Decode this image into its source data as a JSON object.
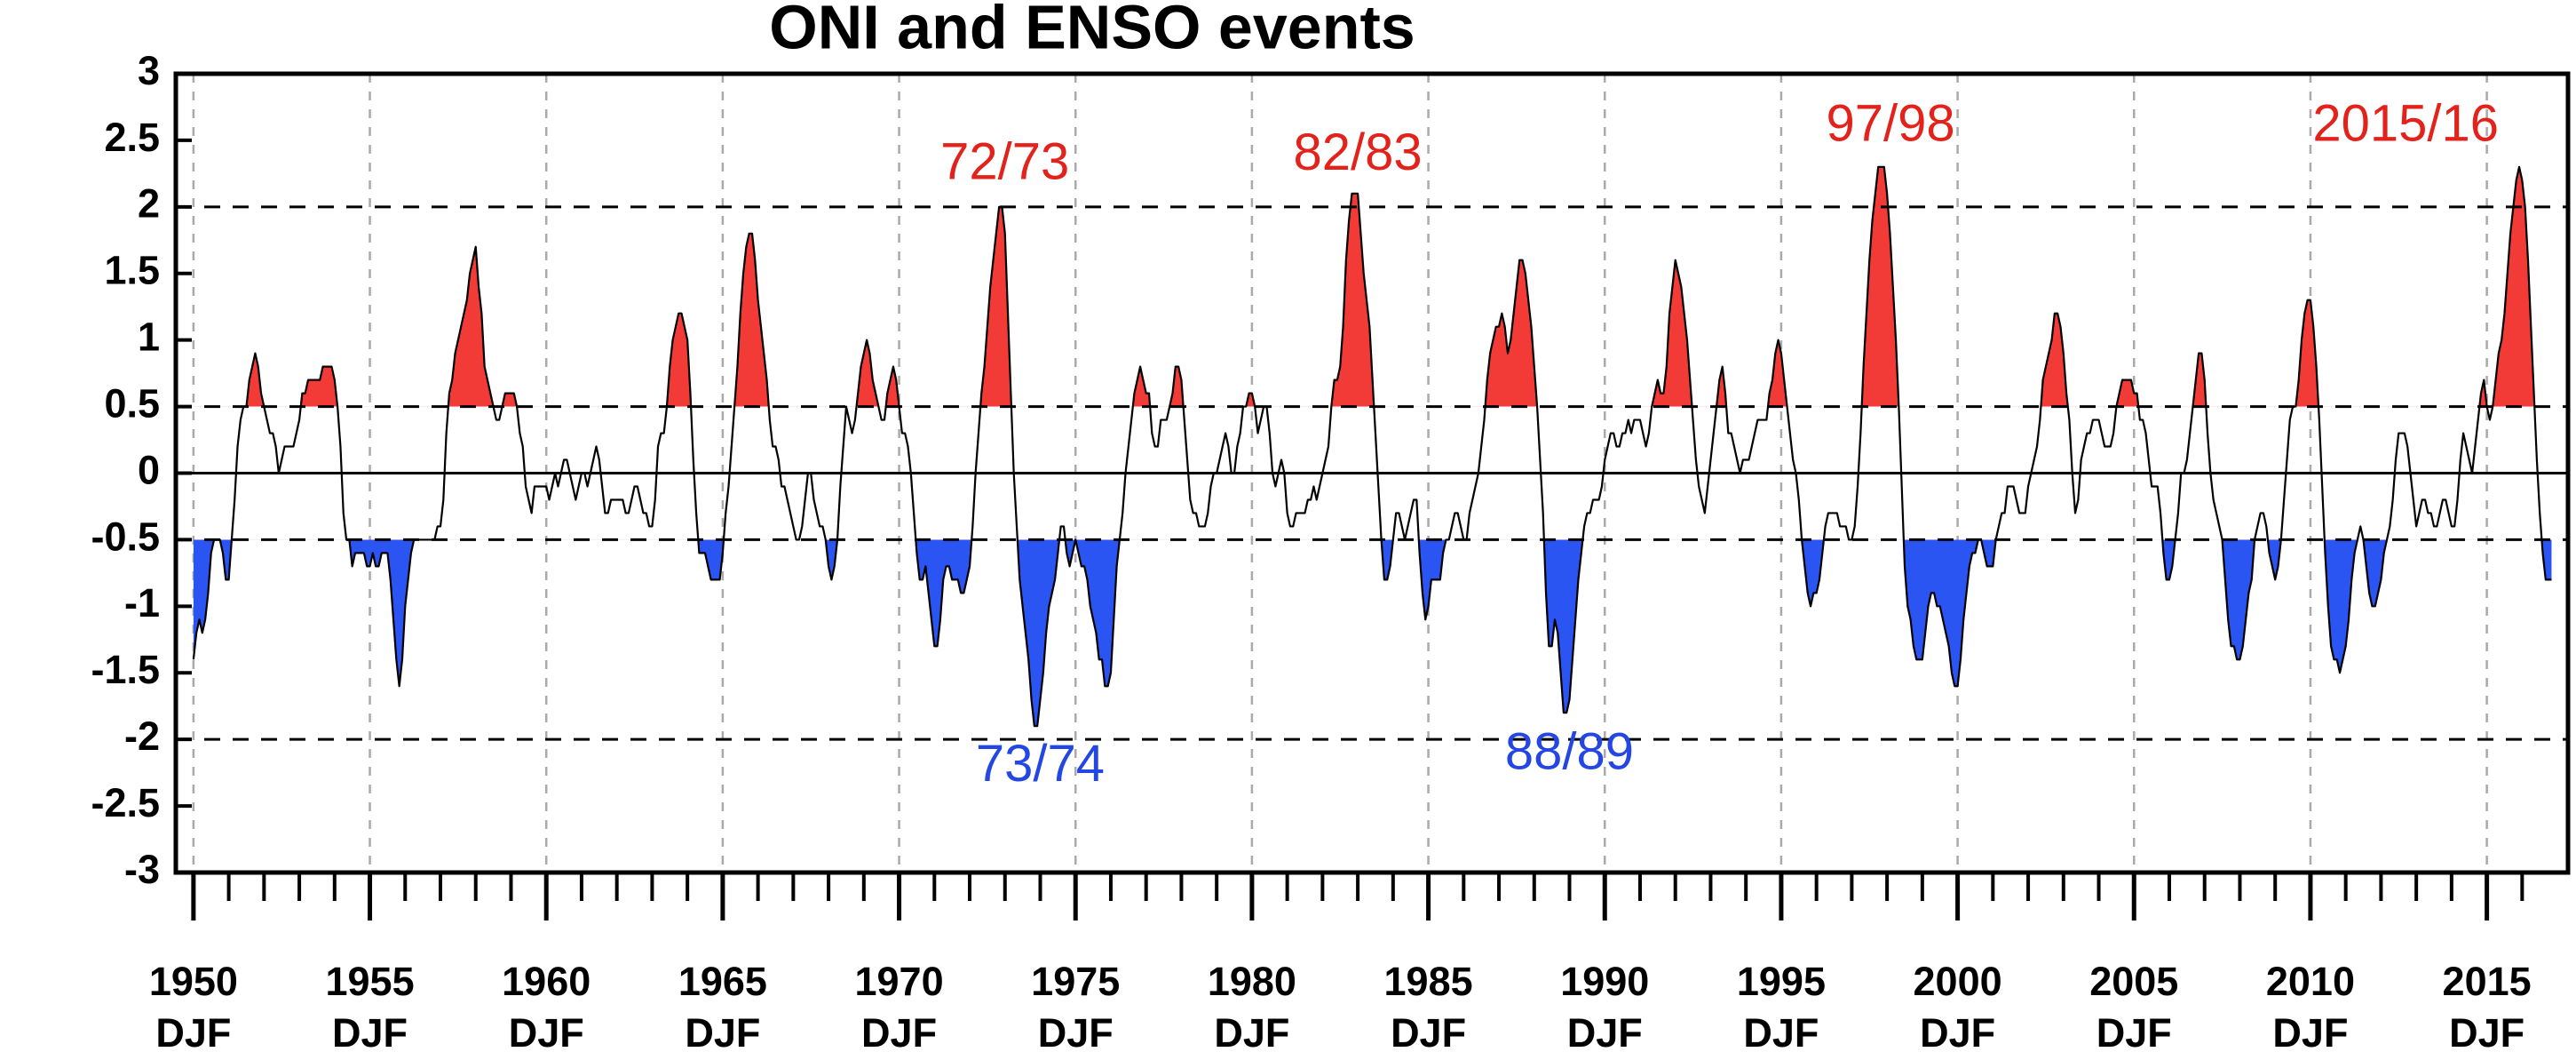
{
  "chart_data": {
    "type": "line",
    "title": "ONI and ENSO events",
    "xlim": [
      1949.5,
      2017.3
    ],
    "ylim": [
      -3,
      3
    ],
    "xticks": [
      1950,
      1955,
      1960,
      1965,
      1970,
      1975,
      1980,
      1985,
      1990,
      1995,
      2000,
      2005,
      2010,
      2015
    ],
    "xtick_season": "DJF",
    "xminor_ticks": [
      1951,
      1952,
      1953,
      1954,
      1956,
      1957,
      1958,
      1959,
      1961,
      1962,
      1963,
      1964,
      1966,
      1967,
      1968,
      1969,
      1971,
      1972,
      1973,
      1974,
      1976,
      1977,
      1978,
      1979,
      1981,
      1982,
      1983,
      1984,
      1986,
      1987,
      1988,
      1989,
      1991,
      1992,
      1993,
      1994,
      1996,
      1997,
      1998,
      1999,
      2001,
      2002,
      2003,
      2004,
      2006,
      2007,
      2008,
      2009,
      2011,
      2012,
      2013,
      2014,
      2016
    ],
    "yticks": [
      3,
      2.5,
      2,
      1.5,
      1,
      0.5,
      0,
      -0.5,
      -1,
      -1.5,
      -2,
      -2.5,
      -3
    ],
    "grid": true,
    "line_color": "#000000",
    "reference_lines": [
      {
        "value": 2,
        "dashed": true
      },
      {
        "value": 0.5,
        "dashed": true
      },
      {
        "value": 0,
        "dashed": false
      },
      {
        "value": -0.5,
        "dashed": true
      },
      {
        "value": -2,
        "dashed": true
      }
    ],
    "el_nino": {
      "threshold": 0.5,
      "color": "#f23b36"
    },
    "la_nina": {
      "threshold": -0.5,
      "color": "#2b55f2"
    },
    "annotations": [
      {
        "text": "72/73",
        "x": 1973.0,
        "y": 2.31,
        "color": "#e3221c"
      },
      {
        "text": "82/83",
        "x": 1983.0,
        "y": 2.38,
        "color": "#e3221c"
      },
      {
        "text": "97/98",
        "x": 1998.1,
        "y": 2.6,
        "color": "#e3221c"
      },
      {
        "text": "2015/16",
        "x": 2012.7,
        "y": 2.6,
        "color": "#e3221c"
      },
      {
        "text": "73/74",
        "x": 1974.0,
        "y": -2.21,
        "color": "#2447e3"
      },
      {
        "text": "88/89",
        "x": 1989.0,
        "y": -2.12,
        "color": "#2447e3"
      }
    ],
    "years": [
      1950,
      1951,
      1952,
      1953,
      1954,
      1955,
      1956,
      1957,
      1958,
      1959,
      1960,
      1961,
      1962,
      1963,
      1964,
      1965,
      1966,
      1967,
      1968,
      1969,
      1970,
      1971,
      1972,
      1973,
      1974,
      1975,
      1976,
      1977,
      1978,
      1979,
      1980,
      1981,
      1982,
      1983,
      1984,
      1985,
      1986,
      1987,
      1988,
      1989,
      1990,
      1991,
      1992,
      1993,
      1994,
      1995,
      1996,
      1997,
      1998,
      1999,
      2000,
      2001,
      2002,
      2003,
      2004,
      2005,
      2006,
      2007,
      2008,
      2009,
      2010,
      2011,
      2012,
      2013,
      2014,
      2015,
      2016
    ],
    "values": [
      [
        -1.4,
        -1.2,
        -1.1,
        -1.2,
        -1.1,
        -0.9,
        -0.6,
        -0.5,
        -0.5,
        -0.5,
        -0.6,
        -0.8
      ],
      [
        -0.8,
        -0.5,
        -0.2,
        0.2,
        0.4,
        0.5,
        0.5,
        0.7,
        0.8,
        0.9,
        0.8,
        0.6
      ],
      [
        0.5,
        0.4,
        0.3,
        0.3,
        0.2,
        0.0,
        0.1,
        0.2,
        0.2,
        0.2,
        0.2,
        0.3
      ],
      [
        0.4,
        0.6,
        0.6,
        0.7,
        0.7,
        0.7,
        0.7,
        0.7,
        0.8,
        0.8,
        0.8,
        0.8
      ],
      [
        0.7,
        0.5,
        0.2,
        -0.3,
        -0.5,
        -0.5,
        -0.7,
        -0.6,
        -0.6,
        -0.6,
        -0.6,
        -0.7
      ],
      [
        -0.7,
        -0.6,
        -0.7,
        -0.7,
        -0.6,
        -0.6,
        -0.6,
        -0.8,
        -1.1,
        -1.4,
        -1.6,
        -1.4
      ],
      [
        -1.0,
        -0.8,
        -0.6,
        -0.5,
        -0.5,
        -0.5,
        -0.5,
        -0.5,
        -0.5,
        -0.5,
        -0.5,
        -0.4
      ],
      [
        -0.4,
        -0.2,
        0.3,
        0.6,
        0.7,
        0.9,
        1.0,
        1.1,
        1.2,
        1.3,
        1.5,
        1.6
      ],
      [
        1.7,
        1.4,
        1.2,
        0.8,
        0.7,
        0.6,
        0.5,
        0.4,
        0.4,
        0.5,
        0.6,
        0.6
      ],
      [
        0.6,
        0.6,
        0.5,
        0.3,
        0.2,
        -0.1,
        -0.2,
        -0.3,
        -0.1,
        -0.1,
        -0.1,
        -0.1
      ],
      [
        -0.1,
        -0.2,
        -0.1,
        0.0,
        -0.1,
        0.0,
        0.1,
        0.1,
        0.0,
        -0.1,
        -0.2,
        -0.1
      ],
      [
        0.0,
        0.0,
        -0.1,
        0.0,
        0.1,
        0.2,
        0.1,
        -0.1,
        -0.3,
        -0.3,
        -0.2,
        -0.2
      ],
      [
        -0.2,
        -0.2,
        -0.2,
        -0.3,
        -0.3,
        -0.2,
        -0.1,
        -0.1,
        -0.2,
        -0.3,
        -0.3,
        -0.4
      ],
      [
        -0.4,
        -0.2,
        0.2,
        0.3,
        0.3,
        0.5,
        0.8,
        1.0,
        1.1,
        1.2,
        1.2,
        1.1
      ],
      [
        1.0,
        0.6,
        0.1,
        -0.3,
        -0.6,
        -0.6,
        -0.6,
        -0.7,
        -0.8,
        -0.8,
        -0.8,
        -0.8
      ],
      [
        -0.6,
        -0.3,
        -0.1,
        0.2,
        0.5,
        0.8,
        1.2,
        1.5,
        1.7,
        1.8,
        1.8,
        1.6
      ],
      [
        1.3,
        1.1,
        0.9,
        0.7,
        0.4,
        0.2,
        0.2,
        0.1,
        -0.1,
        -0.1,
        -0.2,
        -0.3
      ],
      [
        -0.4,
        -0.5,
        -0.5,
        -0.4,
        -0.2,
        0.0,
        0.0,
        -0.2,
        -0.3,
        -0.4,
        -0.4,
        -0.5
      ],
      [
        -0.7,
        -0.8,
        -0.7,
        -0.5,
        -0.1,
        0.2,
        0.5,
        0.4,
        0.3,
        0.4,
        0.6,
        0.8
      ],
      [
        0.9,
        1.0,
        0.9,
        0.7,
        0.6,
        0.5,
        0.4,
        0.4,
        0.6,
        0.7,
        0.8,
        0.7
      ],
      [
        0.5,
        0.3,
        0.3,
        0.2,
        0.0,
        -0.3,
        -0.6,
        -0.8,
        -0.8,
        -0.7,
        -0.9,
        -1.1
      ],
      [
        -1.3,
        -1.3,
        -1.1,
        -0.8,
        -0.7,
        -0.7,
        -0.8,
        -0.8,
        -0.8,
        -0.9,
        -0.9,
        -0.8
      ],
      [
        -0.7,
        -0.4,
        0.0,
        0.3,
        0.6,
        0.8,
        1.1,
        1.4,
        1.6,
        1.8,
        2.0,
        2.0
      ],
      [
        1.8,
        1.2,
        0.6,
        0.0,
        -0.4,
        -0.8,
        -1.0,
        -1.2,
        -1.4,
        -1.7,
        -1.9,
        -1.9
      ],
      [
        -1.7,
        -1.5,
        -1.2,
        -1.0,
        -0.9,
        -0.8,
        -0.6,
        -0.4,
        -0.4,
        -0.6,
        -0.7,
        -0.6
      ],
      [
        -0.5,
        -0.6,
        -0.7,
        -0.7,
        -0.8,
        -1.0,
        -1.1,
        -1.2,
        -1.4,
        -1.4,
        -1.6,
        -1.6
      ],
      [
        -1.5,
        -1.1,
        -0.7,
        -0.5,
        -0.3,
        0.0,
        0.2,
        0.4,
        0.6,
        0.7,
        0.8,
        0.7
      ],
      [
        0.6,
        0.6,
        0.3,
        0.2,
        0.2,
        0.4,
        0.4,
        0.4,
        0.5,
        0.6,
        0.8,
        0.8
      ],
      [
        0.7,
        0.4,
        0.1,
        -0.2,
        -0.3,
        -0.3,
        -0.4,
        -0.4,
        -0.4,
        -0.3,
        -0.1,
        0.0
      ],
      [
        0.0,
        0.1,
        0.2,
        0.3,
        0.2,
        0.0,
        0.0,
        0.2,
        0.3,
        0.5,
        0.5,
        0.6
      ],
      [
        0.6,
        0.5,
        0.3,
        0.4,
        0.5,
        0.5,
        0.3,
        0.0,
        -0.1,
        0.0,
        0.1,
        0.0
      ],
      [
        -0.3,
        -0.4,
        -0.4,
        -0.3,
        -0.3,
        -0.3,
        -0.3,
        -0.2,
        -0.2,
        -0.1,
        -0.2,
        -0.1
      ],
      [
        0.0,
        0.1,
        0.2,
        0.5,
        0.7,
        0.7,
        0.8,
        1.1,
        1.6,
        1.9,
        2.1,
        2.1
      ],
      [
        2.1,
        1.8,
        1.5,
        1.3,
        1.1,
        0.7,
        0.3,
        -0.1,
        -0.5,
        -0.8,
        -0.8,
        -0.7
      ],
      [
        -0.5,
        -0.3,
        -0.3,
        -0.4,
        -0.5,
        -0.4,
        -0.3,
        -0.2,
        -0.2,
        -0.6,
        -0.9,
        -1.1
      ],
      [
        -1.0,
        -0.8,
        -0.8,
        -0.8,
        -0.8,
        -0.6,
        -0.5,
        -0.5,
        -0.4,
        -0.3,
        -0.3,
        -0.4
      ],
      [
        -0.5,
        -0.5,
        -0.3,
        -0.2,
        -0.1,
        0.0,
        0.2,
        0.4,
        0.7,
        0.9,
        1.0,
        1.1
      ],
      [
        1.1,
        1.2,
        1.1,
        0.9,
        1.0,
        1.2,
        1.4,
        1.6,
        1.6,
        1.5,
        1.3,
        1.1
      ],
      [
        0.8,
        0.5,
        0.1,
        -0.3,
        -0.9,
        -1.3,
        -1.3,
        -1.1,
        -1.2,
        -1.5,
        -1.8,
        -1.8
      ],
      [
        -1.7,
        -1.4,
        -1.1,
        -0.8,
        -0.6,
        -0.4,
        -0.3,
        -0.3,
        -0.2,
        -0.2,
        -0.2,
        -0.1
      ],
      [
        0.1,
        0.2,
        0.3,
        0.3,
        0.2,
        0.2,
        0.3,
        0.3,
        0.4,
        0.3,
        0.4,
        0.4
      ],
      [
        0.4,
        0.3,
        0.2,
        0.3,
        0.5,
        0.6,
        0.7,
        0.6,
        0.6,
        0.8,
        1.2,
        1.4
      ],
      [
        1.6,
        1.5,
        1.4,
        1.2,
        1.0,
        0.7,
        0.4,
        0.1,
        -0.1,
        -0.2,
        -0.3,
        -0.1
      ],
      [
        0.1,
        0.3,
        0.5,
        0.7,
        0.8,
        0.6,
        0.3,
        0.3,
        0.2,
        0.1,
        0.0,
        0.1
      ],
      [
        0.1,
        0.1,
        0.2,
        0.3,
        0.4,
        0.4,
        0.4,
        0.4,
        0.6,
        0.7,
        0.9,
        1.0
      ],
      [
        0.9,
        0.7,
        0.5,
        0.3,
        0.1,
        0.0,
        -0.2,
        -0.5,
        -0.7,
        -0.9,
        -1.0,
        -0.9
      ],
      [
        -0.9,
        -0.8,
        -0.6,
        -0.4,
        -0.3,
        -0.3,
        -0.3,
        -0.3,
        -0.4,
        -0.4,
        -0.4,
        -0.5
      ],
      [
        -0.5,
        -0.4,
        -0.1,
        0.3,
        0.8,
        1.2,
        1.6,
        1.9,
        2.1,
        2.3,
        2.3,
        2.3
      ],
      [
        2.1,
        1.8,
        1.4,
        1.0,
        0.5,
        -0.1,
        -0.7,
        -1.0,
        -1.1,
        -1.3,
        -1.4,
        -1.4
      ],
      [
        -1.4,
        -1.2,
        -1.0,
        -0.9,
        -0.9,
        -1.0,
        -1.0,
        -1.1,
        -1.2,
        -1.3,
        -1.5,
        -1.6
      ],
      [
        -1.6,
        -1.4,
        -1.1,
        -0.9,
        -0.7,
        -0.6,
        -0.6,
        -0.5,
        -0.5,
        -0.6,
        -0.7,
        -0.7
      ],
      [
        -0.7,
        -0.5,
        -0.4,
        -0.3,
        -0.3,
        -0.1,
        -0.1,
        -0.1,
        -0.2,
        -0.3,
        -0.3,
        -0.3
      ],
      [
        -0.1,
        0.0,
        0.1,
        0.2,
        0.4,
        0.7,
        0.8,
        0.9,
        1.0,
        1.2,
        1.2,
        1.1
      ],
      [
        0.9,
        0.6,
        0.4,
        0.0,
        -0.3,
        -0.2,
        0.1,
        0.2,
        0.3,
        0.3,
        0.4,
        0.4
      ],
      [
        0.4,
        0.3,
        0.2,
        0.2,
        0.2,
        0.3,
        0.5,
        0.6,
        0.7,
        0.7,
        0.7,
        0.7
      ],
      [
        0.6,
        0.6,
        0.4,
        0.4,
        0.3,
        0.1,
        -0.1,
        -0.1,
        -0.1,
        -0.3,
        -0.6,
        -0.8
      ],
      [
        -0.8,
        -0.7,
        -0.5,
        -0.3,
        0.0,
        0.0,
        0.1,
        0.3,
        0.5,
        0.7,
        0.9,
        0.9
      ],
      [
        0.7,
        0.3,
        0.0,
        -0.2,
        -0.3,
        -0.4,
        -0.5,
        -0.8,
        -1.1,
        -1.3,
        -1.3,
        -1.4
      ],
      [
        -1.4,
        -1.3,
        -1.1,
        -0.9,
        -0.8,
        -0.5,
        -0.4,
        -0.3,
        -0.3,
        -0.4,
        -0.6,
        -0.7
      ],
      [
        -0.8,
        -0.7,
        -0.5,
        -0.2,
        0.1,
        0.4,
        0.5,
        0.5,
        0.7,
        1.0,
        1.2,
        1.3
      ],
      [
        1.3,
        1.1,
        0.8,
        0.4,
        -0.1,
        -0.6,
        -1.0,
        -1.3,
        -1.4,
        -1.4,
        -1.5,
        -1.4
      ],
      [
        -1.3,
        -1.1,
        -0.8,
        -0.6,
        -0.5,
        -0.4,
        -0.5,
        -0.7,
        -0.9,
        -1.0,
        -1.0,
        -0.9
      ],
      [
        -0.8,
        -0.6,
        -0.5,
        -0.4,
        -0.2,
        0.1,
        0.3,
        0.3,
        0.3,
        0.2,
        0.0,
        -0.2
      ],
      [
        -0.4,
        -0.3,
        -0.2,
        -0.2,
        -0.3,
        -0.3,
        -0.4,
        -0.4,
        -0.3,
        -0.2,
        -0.2,
        -0.3
      ],
      [
        -0.4,
        -0.4,
        -0.2,
        0.1,
        0.3,
        0.2,
        0.1,
        0.0,
        0.2,
        0.4,
        0.6,
        0.7
      ],
      [
        0.5,
        0.4,
        0.5,
        0.7,
        0.9,
        1.0,
        1.2,
        1.5,
        1.8,
        2.0,
        2.2,
        2.3
      ],
      [
        2.2,
        2.0,
        1.6,
        1.1,
        0.6,
        0.1,
        -0.3,
        -0.6,
        -0.8,
        -0.8,
        -0.8
      ]
    ]
  }
}
